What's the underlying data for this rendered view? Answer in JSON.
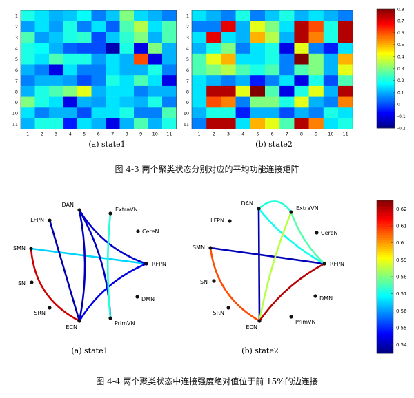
{
  "figure1": {
    "matrix_a_sub": "(a) state1",
    "matrix_b_sub": "(b) state2",
    "caption": "图 4-3  两个聚类状态分别对应的平均功能连接矩阵",
    "ticks": [
      "1",
      "2",
      "3",
      "4",
      "5",
      "6",
      "7",
      "8",
      "9",
      "10",
      "11"
    ],
    "colorbar_ticks": [
      "0.8",
      "0.7",
      "0.6",
      "0.5",
      "0.4",
      "0.3",
      "0.2",
      "0.1",
      "0",
      "-0.1",
      "-0.2"
    ],
    "colorbar_range": [
      -0.2,
      0.8
    ]
  },
  "figure2": {
    "graph_a_sub": "(a) state1",
    "graph_b_sub": "(b) state2",
    "caption": "图 4-4  两个聚类状态中连接强度绝对值位于前 15%的边连接",
    "colorbar_ticks": [
      "0.62",
      "0.61",
      "0.6",
      "0.59",
      "0.58",
      "0.57",
      "0.56",
      "0.55",
      "0.54"
    ],
    "colorbar_range": [
      0.535,
      0.625
    ]
  },
  "chart_data": [
    {
      "type": "heatmap",
      "title": "",
      "subtitle": "(a) state1",
      "x": [
        1,
        2,
        3,
        4,
        5,
        6,
        7,
        8,
        9,
        10,
        11
      ],
      "y": [
        1,
        2,
        3,
        4,
        5,
        6,
        7,
        8,
        9,
        10,
        11
      ],
      "values": [
        [
          0.2,
          0.15,
          0.1,
          0.12,
          0.18,
          0.05,
          0.12,
          0.3,
          0.14,
          0.1,
          0.05
        ],
        [
          0.08,
          0.15,
          0.08,
          0.2,
          0.05,
          0.15,
          0.02,
          0.25,
          0.35,
          0.15,
          0.25
        ],
        [
          0.25,
          0.08,
          0.12,
          0.2,
          0.22,
          0.0,
          0.12,
          0.22,
          0.3,
          0.1,
          0.25
        ],
        [
          0.2,
          0.18,
          0.1,
          0.02,
          0.0,
          0.0,
          -0.15,
          0.2,
          -0.1,
          0.3,
          0.1
        ],
        [
          0.2,
          0.15,
          0.25,
          0.2,
          0.2,
          0.08,
          0.15,
          0.1,
          0.6,
          -0.1,
          0.1
        ],
        [
          0.1,
          0.05,
          -0.1,
          0.15,
          0.05,
          0.05,
          0.15,
          0.1,
          0.1,
          0.2,
          0.05
        ],
        [
          0.05,
          0.1,
          0.1,
          0.08,
          0.0,
          0.05,
          0.2,
          0.15,
          0.25,
          0.15,
          -0.1
        ],
        [
          0.1,
          0.2,
          0.25,
          0.3,
          0.4,
          0.1,
          0.15,
          0.15,
          0.05,
          0.1,
          0.1
        ],
        [
          0.3,
          0.2,
          0.15,
          -0.1,
          0.1,
          0.08,
          0.15,
          0.12,
          0.1,
          0.2,
          0.05
        ],
        [
          0.15,
          0.05,
          0.1,
          0.1,
          0.0,
          0.15,
          0.15,
          0.2,
          0.05,
          0.05,
          0.25
        ],
        [
          0.1,
          0.2,
          0.2,
          -0.05,
          0.15,
          0.1,
          -0.1,
          0.1,
          0.25,
          0.1,
          0.2
        ]
      ]
    },
    {
      "type": "heatmap",
      "title": "",
      "subtitle": "(b) state2",
      "x": [
        1,
        2,
        3,
        4,
        5,
        6,
        7,
        8,
        9,
        10,
        11
      ],
      "y": [
        1,
        2,
        3,
        4,
        5,
        6,
        7,
        8,
        9,
        10,
        11
      ],
      "values": [
        [
          0.15,
          0.1,
          0.05,
          0.2,
          0.05,
          0.12,
          0.2,
          0.1,
          0.15,
          0.1,
          0.05
        ],
        [
          0.05,
          0.05,
          0.7,
          0.1,
          0.4,
          0.3,
          0.15,
          0.75,
          0.6,
          0.2,
          0.75
        ],
        [
          0.15,
          0.7,
          0.15,
          0.1,
          0.5,
          0.35,
          0.1,
          0.75,
          0.55,
          0.2,
          0.75
        ],
        [
          0.1,
          0.2,
          0.3,
          0.05,
          0.15,
          0.2,
          -0.1,
          0.4,
          0.05,
          -0.05,
          0.15
        ],
        [
          0.25,
          0.4,
          0.5,
          0.15,
          0.15,
          0.2,
          0.05,
          0.8,
          0.3,
          0.1,
          0.5
        ],
        [
          0.25,
          0.3,
          0.35,
          0.25,
          0.2,
          0.25,
          0.05,
          0.25,
          0.3,
          0.1,
          0.4
        ],
        [
          0.15,
          0.1,
          0.05,
          0.1,
          -0.05,
          0.05,
          0.15,
          -0.1,
          0.2,
          0.0,
          0.25
        ],
        [
          0.15,
          0.75,
          0.75,
          0.4,
          0.8,
          0.25,
          -0.1,
          0.2,
          0.4,
          0.1,
          0.75
        ],
        [
          0.15,
          0.6,
          0.55,
          0.05,
          0.3,
          0.3,
          0.2,
          0.4,
          0.1,
          0.05,
          0.55
        ],
        [
          0.1,
          0.2,
          0.2,
          -0.05,
          0.1,
          0.1,
          0.0,
          0.1,
          0.05,
          0.2,
          0.15
        ],
        [
          0.05,
          0.75,
          0.75,
          0.15,
          0.5,
          0.4,
          0.25,
          0.75,
          0.55,
          0.15,
          0.2
        ]
      ]
    }
  ],
  "graphs": {
    "nodes": [
      "DAN",
      "ExtraVN",
      "CereN",
      "RFPN",
      "DMN",
      "PrimVN",
      "ECN",
      "SRN",
      "SN",
      "SMN",
      "LFPN"
    ],
    "state1_edges": [
      {
        "from": "SMN",
        "to": "RFPN",
        "value": 0.565
      },
      {
        "from": "SMN",
        "to": "ECN",
        "value": 0.618
      },
      {
        "from": "DAN",
        "to": "ECN",
        "value": 0.54
      },
      {
        "from": "DAN",
        "to": "RFPN",
        "value": 0.542
      },
      {
        "from": "DAN",
        "to": "PrimVN",
        "value": 0.541
      },
      {
        "from": "ECN",
        "to": "RFPN",
        "value": 0.544
      },
      {
        "from": "ExtraVN",
        "to": "PrimVN",
        "value": 0.572
      },
      {
        "from": "LFPN",
        "to": "ECN",
        "value": 0.539
      }
    ],
    "state2_edges": [
      {
        "from": "SMN",
        "to": "RFPN",
        "value": 0.54
      },
      {
        "from": "SMN",
        "to": "ECN",
        "value": 0.607
      },
      {
        "from": "DAN",
        "to": "ECN",
        "value": 0.539
      },
      {
        "from": "DAN",
        "to": "ExtraVN",
        "value": 0.572
      },
      {
        "from": "DAN",
        "to": "RFPN",
        "value": 0.57
      },
      {
        "from": "ExtraVN",
        "to": "RFPN",
        "value": 0.576
      },
      {
        "from": "ExtraVN",
        "to": "ECN",
        "value": 0.585
      },
      {
        "from": "ECN",
        "to": "RFPN",
        "value": 0.62
      }
    ]
  }
}
